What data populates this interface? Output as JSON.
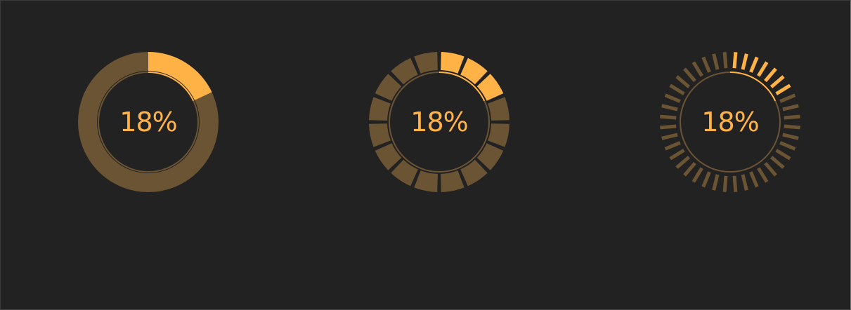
{
  "colors": {
    "background": "#222222",
    "track": "#6b5433",
    "progress": "#ffb347",
    "label": "#ffb347"
  },
  "gauges": [
    {
      "style": "solid-ring",
      "value": 0.18,
      "label": "18%"
    },
    {
      "style": "segmented-ring",
      "value": 0.18,
      "segments": 16,
      "label": "18%"
    },
    {
      "style": "tick-ring",
      "value": 0.18,
      "segments": 40,
      "label": "18%"
    }
  ]
}
